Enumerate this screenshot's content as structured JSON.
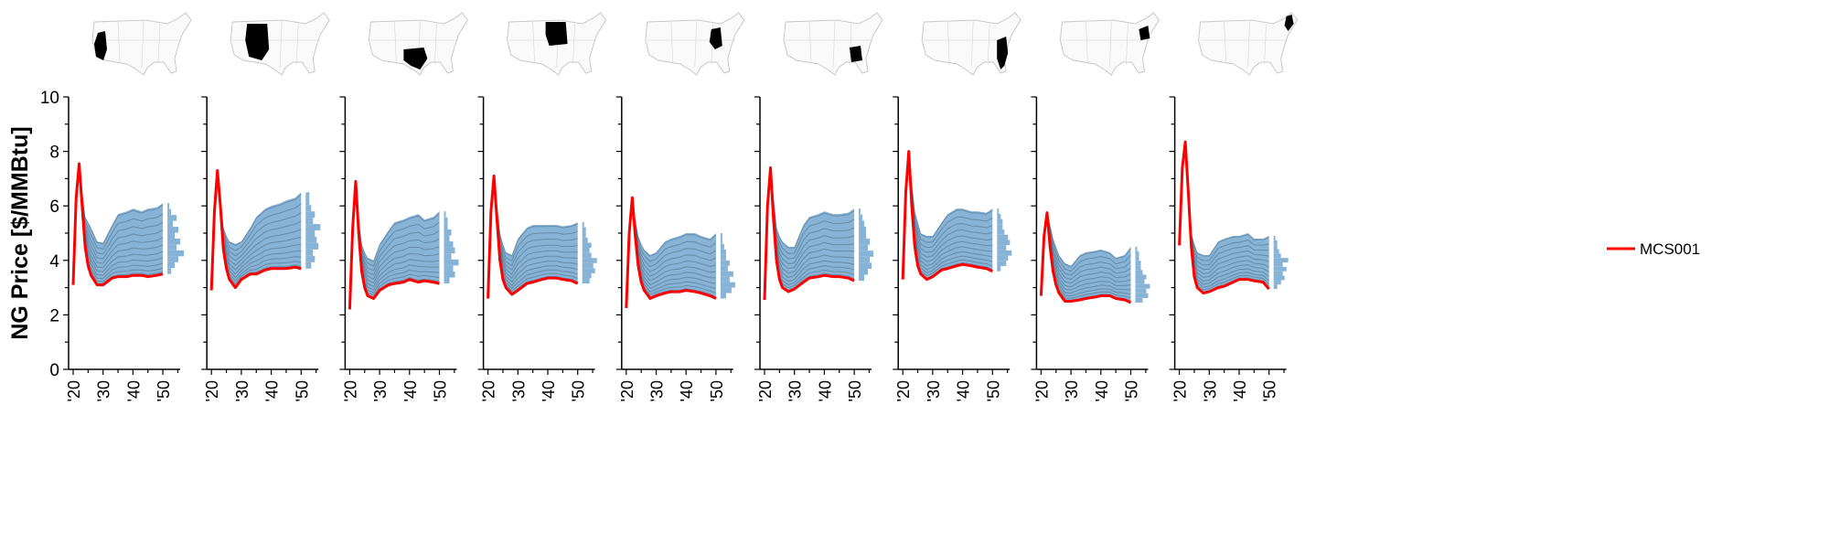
{
  "chart_data": {
    "type": "line",
    "ylabel": "NG Price [$/MMBtu]",
    "ylim": [
      0,
      10
    ],
    "yticks": [
      "0",
      "2",
      "4",
      "6",
      "8",
      "10"
    ],
    "xlim": [
      2019,
      2056
    ],
    "xticks": [
      "'20",
      "'30",
      "'40",
      "'50"
    ],
    "legend": {
      "label": "MCS001",
      "color": "#ff0000",
      "position": "right"
    },
    "colors": {
      "highlight": "#ff0000",
      "band": "#87b3d6",
      "band_lines": "#2b4150",
      "hist": "#87b3d6"
    },
    "x": [
      2020,
      2021,
      2022,
      2023,
      2024,
      2025,
      2026,
      2028,
      2030,
      2033,
      2035,
      2038,
      2040,
      2043,
      2045,
      2048,
      2050
    ],
    "band_x": [
      2022,
      2023,
      2024,
      2025,
      2026,
      2028,
      2030,
      2033,
      2035,
      2038,
      2040,
      2043,
      2045,
      2048,
      2050
    ],
    "panels": [
      {
        "series": [
          3.1,
          6.3,
          7.55,
          6.0,
          4.5,
          3.8,
          3.45,
          3.1,
          3.1,
          3.35,
          3.4,
          3.4,
          3.45,
          3.45,
          3.4,
          3.45,
          3.5
        ],
        "band_upper": [
          7.5,
          6.5,
          5.6,
          5.4,
          5.2,
          4.7,
          4.65,
          5.3,
          5.7,
          5.8,
          5.9,
          5.8,
          5.9,
          5.95,
          6.1
        ],
        "hist": [
          2,
          4,
          6,
          9,
          5,
          7,
          4,
          6,
          3,
          5,
          2,
          1
        ]
      },
      {
        "series": [
          2.9,
          5.8,
          7.3,
          6.0,
          4.4,
          3.7,
          3.3,
          3.0,
          3.3,
          3.5,
          3.5,
          3.65,
          3.7,
          3.7,
          3.7,
          3.75,
          3.7
        ],
        "band_upper": [
          7.3,
          6.2,
          5.2,
          4.9,
          4.7,
          4.6,
          4.7,
          5.2,
          5.6,
          5.9,
          6.0,
          6.1,
          6.2,
          6.3,
          6.5
        ],
        "hist": [
          3,
          5,
          4,
          7,
          6,
          5,
          8,
          4,
          5,
          3,
          2,
          2
        ]
      },
      {
        "series": [
          2.2,
          5.2,
          6.9,
          5.0,
          3.6,
          3.0,
          2.7,
          2.6,
          2.9,
          3.1,
          3.15,
          3.2,
          3.3,
          3.2,
          3.25,
          3.2,
          3.15
        ],
        "band_upper": [
          6.9,
          5.5,
          4.6,
          4.3,
          4.1,
          4.0,
          4.6,
          5.1,
          5.4,
          5.5,
          5.6,
          5.7,
          5.5,
          5.6,
          5.8
        ],
        "hist": [
          3,
          6,
          5,
          8,
          4,
          6,
          5,
          3,
          4,
          2,
          2,
          1
        ]
      },
      {
        "series": [
          2.6,
          5.8,
          7.1,
          5.5,
          4.0,
          3.3,
          3.0,
          2.75,
          2.9,
          3.15,
          3.2,
          3.3,
          3.35,
          3.35,
          3.3,
          3.25,
          3.15
        ],
        "band_upper": [
          7.1,
          6.0,
          5.0,
          4.6,
          4.3,
          4.2,
          4.8,
          5.2,
          5.3,
          5.3,
          5.3,
          5.3,
          5.25,
          5.3,
          5.4
        ],
        "hist": [
          4,
          5,
          7,
          6,
          8,
          5,
          4,
          5,
          3,
          2,
          2,
          1
        ]
      },
      {
        "series": [
          2.25,
          5.0,
          6.3,
          4.9,
          3.8,
          3.2,
          2.9,
          2.6,
          2.7,
          2.8,
          2.85,
          2.85,
          2.9,
          2.85,
          2.8,
          2.7,
          2.6
        ],
        "band_upper": [
          6.2,
          5.5,
          4.9,
          4.6,
          4.4,
          4.2,
          4.3,
          4.7,
          4.8,
          4.9,
          5.0,
          5.0,
          4.9,
          4.8,
          5.0
        ],
        "hist": [
          3,
          6,
          8,
          5,
          7,
          4,
          5,
          3,
          3,
          2,
          1,
          1
        ]
      },
      {
        "series": [
          2.55,
          6.0,
          7.4,
          5.5,
          4.0,
          3.3,
          3.0,
          2.85,
          2.95,
          3.2,
          3.35,
          3.4,
          3.45,
          3.4,
          3.4,
          3.35,
          3.25
        ],
        "band_upper": [
          7.4,
          6.3,
          5.2,
          4.9,
          4.7,
          4.5,
          4.5,
          5.3,
          5.6,
          5.7,
          5.8,
          5.7,
          5.7,
          5.75,
          5.9
        ],
        "hist": [
          3,
          5,
          7,
          6,
          8,
          5,
          6,
          4,
          4,
          3,
          2,
          1
        ]
      },
      {
        "series": [
          3.3,
          6.5,
          8.0,
          6.0,
          4.5,
          3.8,
          3.5,
          3.3,
          3.4,
          3.65,
          3.7,
          3.8,
          3.85,
          3.8,
          3.75,
          3.7,
          3.6
        ],
        "band_upper": [
          8.0,
          6.8,
          5.8,
          5.4,
          5.0,
          4.9,
          4.9,
          5.4,
          5.7,
          5.9,
          5.9,
          5.8,
          5.8,
          5.75,
          5.9
        ],
        "hist": [
          2,
          5,
          6,
          8,
          5,
          7,
          6,
          4,
          3,
          3,
          2,
          1
        ]
      },
      {
        "series": [
          2.7,
          4.9,
          5.75,
          4.5,
          3.6,
          3.1,
          2.8,
          2.5,
          2.5,
          2.55,
          2.6,
          2.65,
          2.7,
          2.7,
          2.6,
          2.55,
          2.45
        ],
        "band_upper": [
          5.8,
          5.3,
          4.8,
          4.5,
          4.2,
          3.9,
          3.8,
          4.2,
          4.3,
          4.35,
          4.4,
          4.3,
          4.1,
          4.2,
          4.5
        ],
        "hist": [
          4,
          7,
          6,
          8,
          5,
          6,
          4,
          3,
          3,
          2,
          2,
          1
        ]
      },
      {
        "series": [
          4.55,
          7.4,
          8.35,
          6.5,
          4.5,
          3.4,
          3.0,
          2.8,
          2.85,
          3.0,
          3.05,
          3.2,
          3.3,
          3.3,
          3.25,
          3.2,
          2.95
        ],
        "band_upper": [
          8.3,
          6.5,
          5.0,
          4.6,
          4.3,
          4.2,
          4.2,
          4.7,
          4.8,
          4.9,
          4.9,
          5.0,
          4.8,
          4.8,
          4.9
        ],
        "hist": [
          2,
          4,
          6,
          5,
          7,
          5,
          8,
          4,
          3,
          2,
          2,
          1
        ]
      }
    ]
  }
}
